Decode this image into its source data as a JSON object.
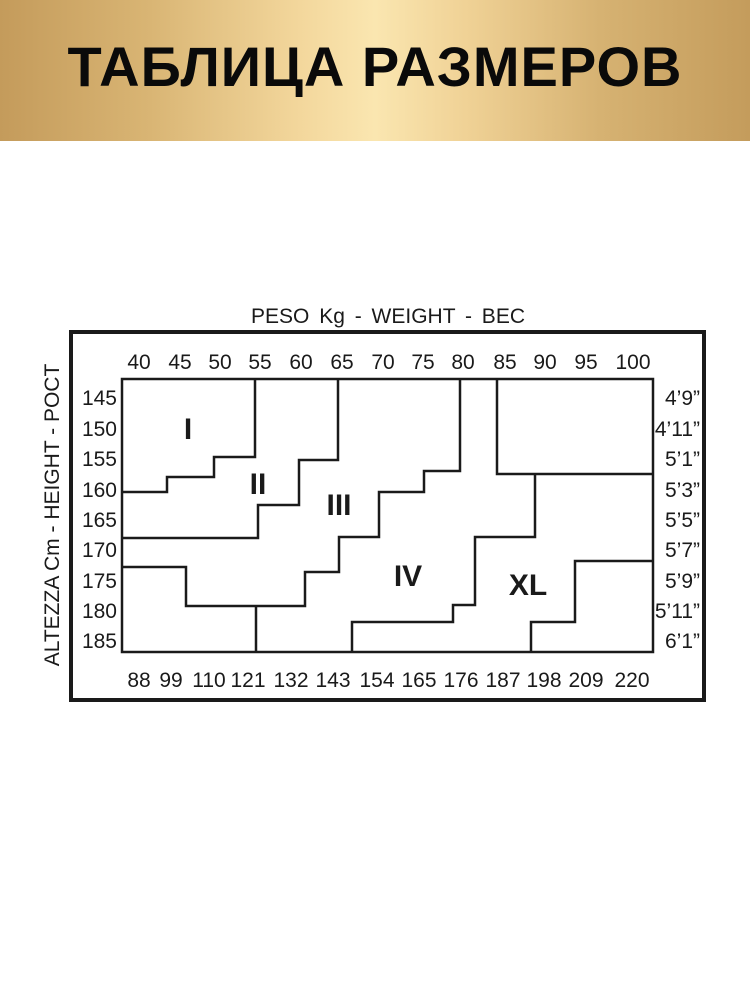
{
  "header": {
    "title": "ТАБЛИЦА РАЗМЕРОВ",
    "background_colors": [
      "#c49b5b",
      "#fae6b0"
    ]
  },
  "chart": {
    "top_axis_title": "PESO Kg - WEIGHT - BEC",
    "left_axis_title": "ALTEZZA Cm - HEIGHT - POCT",
    "weights_kg": [
      "40",
      "45",
      "50",
      "55",
      "60",
      "65",
      "70",
      "75",
      "80",
      "85",
      "90",
      "95",
      "100"
    ],
    "weights_lbs": [
      "88",
      "99",
      "110",
      "121",
      "132",
      "143",
      "154",
      "165",
      "176",
      "187",
      "198",
      "209",
      "220"
    ],
    "heights_cm": [
      "145",
      "150",
      "155",
      "160",
      "165",
      "170",
      "175",
      "180",
      "185"
    ],
    "heights_ft": [
      "4’9”",
      "4’11”",
      "5’1”",
      "5’3”",
      "5’5”",
      "5’7”",
      "5’9”",
      "5’11”",
      "6’1”"
    ],
    "zones": [
      "I",
      "II",
      "III",
      "IV",
      "XL"
    ],
    "line_color": "#1a1a1a"
  }
}
